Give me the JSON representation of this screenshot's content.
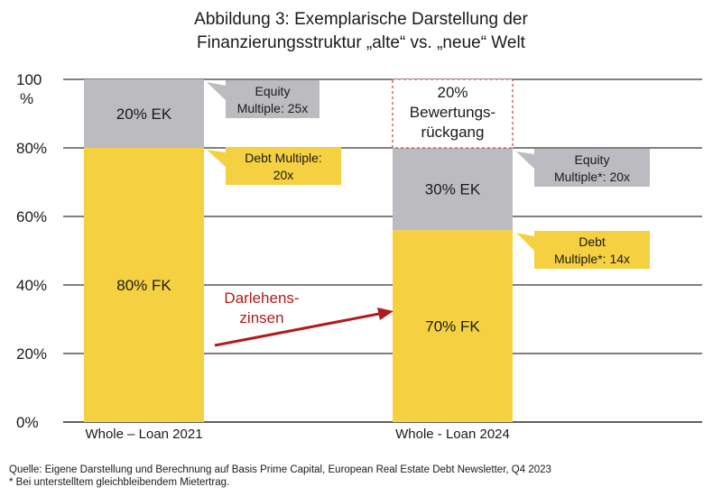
{
  "title_line1": "Abbildung 3: Exemplarische Darstellung der",
  "title_line2": "Finanzierungsstruktur „alte“ vs. „neue“ Welt",
  "source": "Quelle: Eigene Darstellung und Berechnung auf Basis Prime Capital, European Real Estate Debt Newsletter, Q4 2023",
  "footnote": "* Bei unterstelltem gleichbleibendem Mietertrag.",
  "chart_data": {
    "type": "bar",
    "stacked": true,
    "categories": [
      "Whole – Loan 2021",
      "Whole - Loan 2024"
    ],
    "series": [
      {
        "name": "FK",
        "values": [
          80,
          56
        ],
        "color": "#f5d142",
        "labels": [
          "80% FK",
          "70% FK"
        ]
      },
      {
        "name": "EK",
        "values": [
          20,
          24
        ],
        "color": "#bcbcc0",
        "labels": [
          "20% EK",
          "30% EK"
        ]
      }
    ],
    "ylim": [
      0,
      100
    ],
    "yticks": [
      0,
      20,
      40,
      60,
      80,
      100
    ],
    "ytick_labels": [
      "0%",
      "20%",
      "40%",
      "60%",
      "80%",
      "100"
    ],
    "y_unit_label": "%",
    "grid": true,
    "valuation_decline": {
      "value": 20,
      "text_lines": [
        "20%",
        "Bewertungs-",
        "rückgang"
      ]
    },
    "callouts": [
      {
        "lines": [
          "Equity",
          "Multiple: 25x"
        ],
        "kind": "equity"
      },
      {
        "lines": [
          "Debt Multiple:",
          "20x"
        ],
        "kind": "debt"
      },
      {
        "lines": [
          "Equity",
          "Multiple*: 20x"
        ],
        "kind": "equity"
      },
      {
        "lines": [
          "Debt",
          "Multiple*: 14x"
        ],
        "kind": "debt"
      }
    ],
    "arrow_annotation": {
      "lines": [
        "Darlehens-",
        "zinsen"
      ],
      "color": "#b01c1c"
    }
  }
}
